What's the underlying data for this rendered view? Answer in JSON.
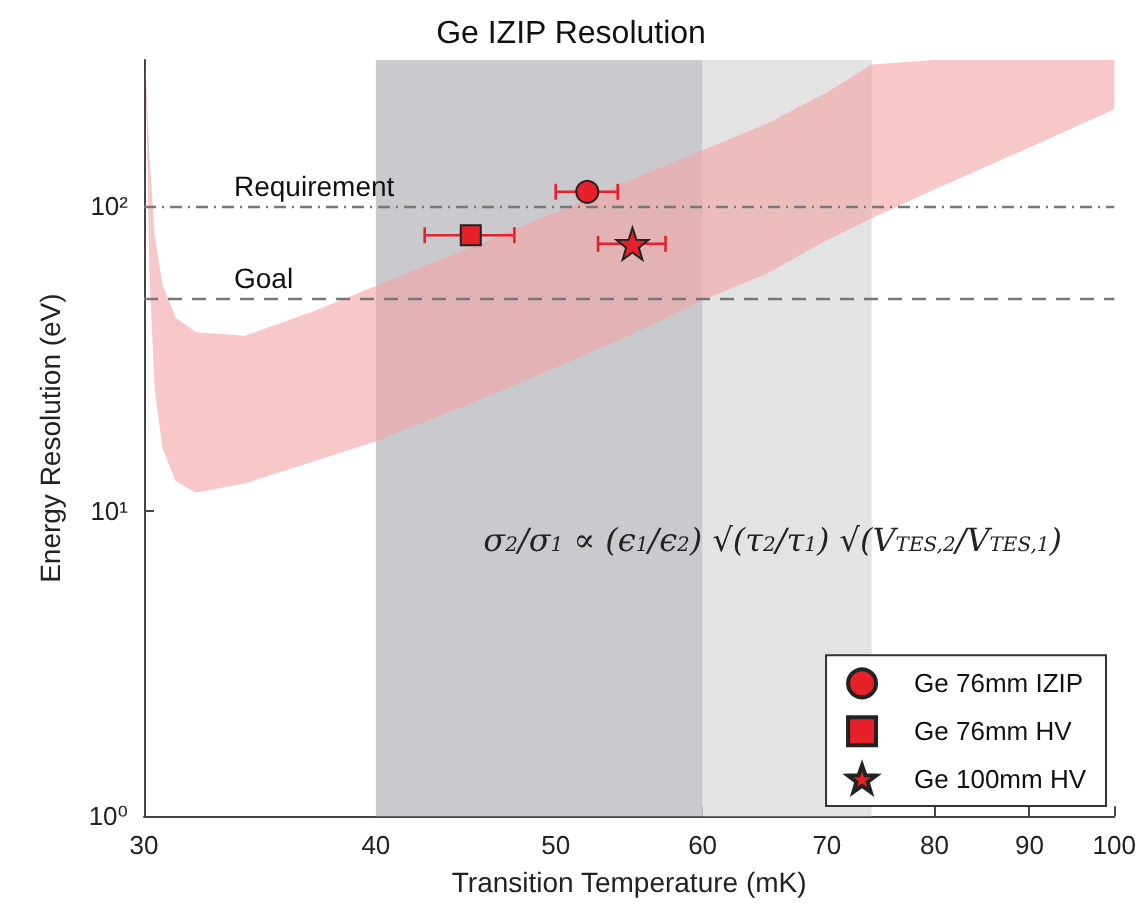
{
  "chart_data": {
    "type": "scatter",
    "title": "Ge IZIP Resolution",
    "xlabel": "Transition Temperature (mK)",
    "ylabel": "Energy Resolution (eV)",
    "log": "xy",
    "xlim": [
      30,
      100
    ],
    "xticks": [
      30,
      40,
      50,
      60,
      70,
      80,
      90,
      100
    ],
    "ylim": [
      1,
      300
    ],
    "yticks": [
      {
        "value": 1,
        "label": "10⁰"
      },
      {
        "value": 10,
        "label": "10¹"
      },
      {
        "value": 100,
        "label": "10²"
      }
    ],
    "grid": false,
    "legend": "bottom right",
    "series": [
      {
        "type": "area",
        "color": "#f4a3a3",
        "x": [
          30.05,
          30.2,
          30.4,
          30.7,
          31.2,
          32,
          34,
          37,
          40,
          45,
          50,
          55,
          60,
          65,
          70,
          74,
          80,
          90,
          100
        ],
        "values": [
          null,
          null,
          null,
          null,
          null,
          null,
          null,
          null,
          null,
          null,
          null,
          null,
          null,
          null,
          null,
          null,
          null,
          null,
          null
        ],
        "lower": [
          300,
          60,
          25,
          16,
          12.5,
          11.5,
          12.3,
          14.5,
          16.9,
          22.5,
          29.5,
          38,
          49,
          60,
          77,
          91,
          113,
          155,
          207
        ],
        "upper": [
          300,
          150,
          80,
          55,
          43,
          38.5,
          37.5,
          45,
          54.6,
          73,
          95,
          122,
          152,
          186,
          235,
          290,
          300,
          300,
          300
        ]
      },
      {
        "name": "Ge 76mm IZIP",
        "marker": "circle",
        "color": "#e8202a",
        "x": [
          52
        ],
        "values": [
          111
        ],
        "xerrors": [
          2
        ]
      },
      {
        "name": "Ge 76mm HV",
        "marker": "square",
        "color": "#e8202a",
        "x": [
          45
        ],
        "values": [
          80
        ],
        "xerrors": [
          2.5
        ]
      },
      {
        "name": "Ge 100mm HV",
        "marker": "star",
        "color": "#e8202a",
        "x": [
          55
        ],
        "values": [
          75
        ],
        "xerrors": [
          2.3
        ]
      }
    ],
    "ref_lines": [
      {
        "axis": "y",
        "value": 100,
        "label": "Requirement",
        "line_style": "dotted",
        "color": "#777777"
      },
      {
        "axis": "y",
        "value": 50,
        "label": "Goal",
        "line_style": "dashed",
        "color": "#777777"
      }
    ],
    "bands": [
      {
        "axis": "x",
        "from": 40,
        "to": 60,
        "color": "#c9c9ce"
      },
      {
        "axis": "x",
        "from": 60,
        "to": 74,
        "color": "#e3e3e3"
      }
    ],
    "annotations": [
      "σ$_{2}$/σ$_{1}$ ∝ (ϵ$_{1}$/ϵ$_{2}$) √(τ$_{2}$/τ$_{1}$) √(V$_{TES,2}$/V$_{TES,1}$)"
    ]
  }
}
